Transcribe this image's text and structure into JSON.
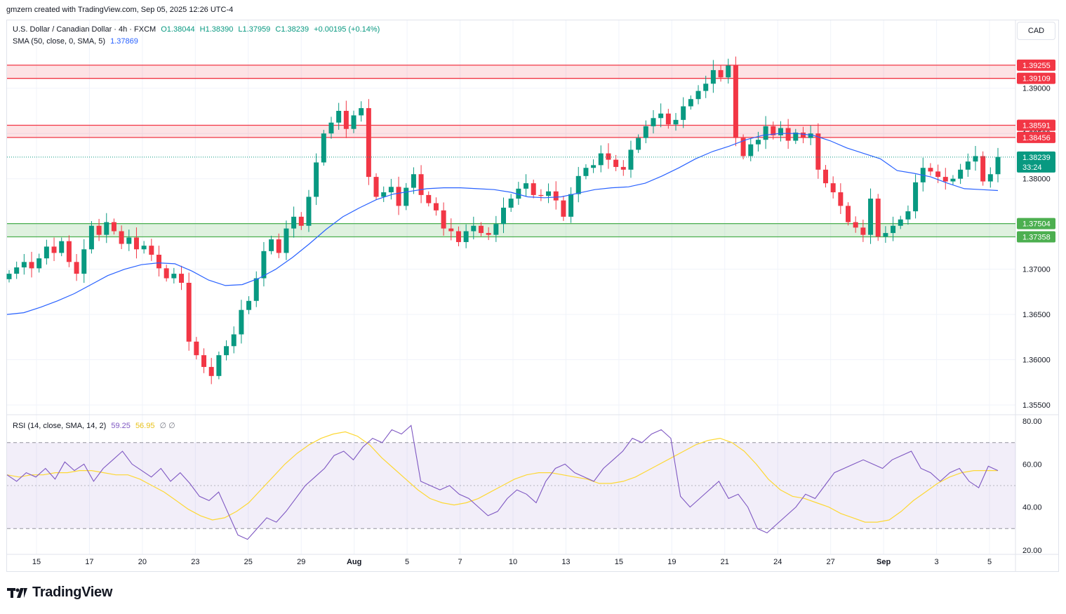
{
  "header": {
    "credit": "gmzern created with TradingView.com, Sep 05, 2025 12:26 UTC-4"
  },
  "legend": {
    "symbol": "U.S. Dollar / Canadian Dollar · 4h · FXCM",
    "open": "O1.38044",
    "high": "H1.38390",
    "low": "L1.37959",
    "close": "C1.38239",
    "change": "+0.00195 (+0.14%)",
    "sma_label": "SMA (50, close, 0, SMA, 5)",
    "sma_value": "1.37869",
    "rsi_label": "RSI (14, close, SMA, 14, 2)",
    "rsi_value": "59.25",
    "rsi_ma_value": "56.95",
    "rsi_extra": "∅ ∅"
  },
  "currency": "CAD",
  "colors": {
    "up": "#089981",
    "down": "#f23645",
    "sma": "#2962ff",
    "rsi": "#7e57c2",
    "rsi_ma": "#fdd835",
    "support": "#4caf50",
    "resistance": "#f23645"
  },
  "chart_data": {
    "type": "candlestick",
    "price_axis": {
      "ticks": [
        "1.39000",
        "1.38500",
        "1.38000",
        "1.37500",
        "1.37000",
        "1.36500",
        "1.36000",
        "1.35500"
      ],
      "range": [
        1.354,
        1.3975
      ]
    },
    "rsi_axis": {
      "ticks": [
        "80.00",
        "60.00",
        "40.00",
        "20.00"
      ],
      "range": [
        18,
        82
      ],
      "bands": [
        30,
        70
      ],
      "mid": 50
    },
    "x_labels": [
      "15",
      "17",
      "20",
      "23",
      "25",
      "29",
      "Aug",
      "5",
      "7",
      "10",
      "13",
      "15",
      "19",
      "21",
      "24",
      "27",
      "Sep",
      "3",
      "5"
    ],
    "zones": [
      {
        "kind": "resistance",
        "top": 1.39255,
        "bottom": 1.39109,
        "top_label": "1.39255",
        "bottom_label": "1.39109"
      },
      {
        "kind": "resistance",
        "top": 1.38591,
        "bottom": 1.38456,
        "top_label": "1.38591",
        "bottom_label": "1.38456"
      },
      {
        "kind": "support",
        "top": 1.37504,
        "bottom": 1.37358,
        "top_label": "1.37504",
        "bottom_label": "1.37358"
      }
    ],
    "last_price": {
      "value": 1.38239,
      "label": "1.38239",
      "countdown": "33:24"
    },
    "close_path": [
      1.3695,
      1.3702,
      1.3708,
      1.3701,
      1.3712,
      1.3725,
      1.3718,
      1.3731,
      1.3708,
      1.3695,
      1.3722,
      1.3748,
      1.3738,
      1.3752,
      1.3742,
      1.3728,
      1.3735,
      1.3722,
      1.3726,
      1.3716,
      1.3701,
      1.369,
      1.3695,
      1.3685,
      1.362,
      1.3605,
      1.3592,
      1.3582,
      1.3605,
      1.3615,
      1.3628,
      1.3655,
      1.3665,
      1.369,
      1.372,
      1.3733,
      1.3718,
      1.3745,
      1.3758,
      1.3748,
      1.378,
      1.3818,
      1.385,
      1.3862,
      1.3875,
      1.3855,
      1.387,
      1.3878,
      1.3802,
      1.378,
      1.3785,
      1.3791,
      1.377,
      1.379,
      1.3805,
      1.3782,
      1.3773,
      1.3765,
      1.3745,
      1.3742,
      1.373,
      1.3742,
      1.3748,
      1.374,
      1.3738,
      1.375,
      1.3768,
      1.3778,
      1.3789,
      1.3795,
      1.3782,
      1.3781,
      1.3786,
      1.3776,
      1.3758,
      1.3783,
      1.3803,
      1.3812,
      1.3815,
      1.3828,
      1.3821,
      1.3813,
      1.381,
      1.3832,
      1.3845,
      1.3858,
      1.3867,
      1.3872,
      1.386,
      1.3865,
      1.388,
      1.3888,
      1.3897,
      1.3905,
      1.392,
      1.3912,
      1.3925,
      1.3845,
      1.3825,
      1.3838,
      1.3843,
      1.3858,
      1.3848,
      1.3856,
      1.3842,
      1.3851,
      1.3845,
      1.385,
      1.381,
      1.3795,
      1.3785,
      1.377,
      1.3752,
      1.3746,
      1.3738,
      1.3778,
      1.3736,
      1.374,
      1.3748,
      1.3755,
      1.3764,
      1.3796,
      1.3812,
      1.3808,
      1.3802,
      1.3797,
      1.38,
      1.381,
      1.3819,
      1.3825,
      1.3797,
      1.3805,
      1.3824
    ],
    "sma_path": [
      1.365,
      1.3652,
      1.3658,
      1.3665,
      1.3673,
      1.3683,
      1.3693,
      1.37,
      1.3705,
      1.3707,
      1.3706,
      1.3698,
      1.3688,
      1.3682,
      1.3683,
      1.369,
      1.37,
      1.3713,
      1.3728,
      1.3744,
      1.3758,
      1.3768,
      1.3777,
      1.3783,
      1.3786,
      1.3789,
      1.379,
      1.379,
      1.3789,
      1.3788,
      1.3785,
      1.378,
      1.3779,
      1.378,
      1.3784,
      1.3788,
      1.379,
      1.3791,
      1.3795,
      1.3803,
      1.3812,
      1.3822,
      1.383,
      1.3836,
      1.3843,
      1.3848,
      1.385,
      1.385,
      1.3848,
      1.3842,
      1.3834,
      1.3828,
      1.3822,
      1.3809,
      1.3806,
      1.3802,
      1.3795,
      1.3789,
      1.3788,
      1.3787
    ],
    "rsi_path": [
      55,
      52,
      56,
      54,
      58,
      53,
      61,
      57,
      60,
      52,
      58,
      62,
      66,
      60,
      57,
      54,
      58,
      52,
      56,
      51,
      45,
      43,
      47,
      37,
      27,
      25,
      30,
      35,
      33,
      38,
      44,
      50,
      54,
      58,
      64,
      66,
      62,
      68,
      72,
      70,
      76,
      74,
      78,
      52,
      50,
      48,
      50,
      46,
      44,
      40,
      36,
      38,
      44,
      48,
      46,
      42,
      52,
      58,
      60,
      56,
      54,
      52,
      58,
      62,
      66,
      72,
      70,
      74,
      76,
      72,
      45,
      40,
      44,
      48,
      52,
      44,
      46,
      40,
      30,
      28,
      32,
      36,
      40,
      46,
      44,
      50,
      56,
      58,
      60,
      62,
      60,
      58,
      62,
      64,
      66,
      58,
      56,
      52,
      56,
      58,
      52,
      49,
      59,
      57
    ],
    "rsi_ma_path": [
      55,
      54,
      55,
      55,
      56,
      56,
      57,
      57,
      56,
      55,
      55,
      53,
      50,
      47,
      43,
      39,
      36,
      34,
      35,
      38,
      42,
      48,
      54,
      60,
      65,
      69,
      72,
      74,
      75,
      73,
      69,
      63,
      58,
      53,
      48,
      44,
      42,
      41,
      42,
      44,
      47,
      50,
      53,
      55,
      56,
      56,
      55,
      54,
      53,
      51,
      51,
      52,
      54,
      57,
      60,
      63,
      66,
      69,
      71,
      72,
      70,
      66,
      60,
      53,
      48,
      45,
      44,
      42,
      40,
      37,
      35,
      33,
      33,
      34,
      38,
      43,
      47,
      51,
      54,
      56,
      57,
      57,
      57
    ]
  }
}
